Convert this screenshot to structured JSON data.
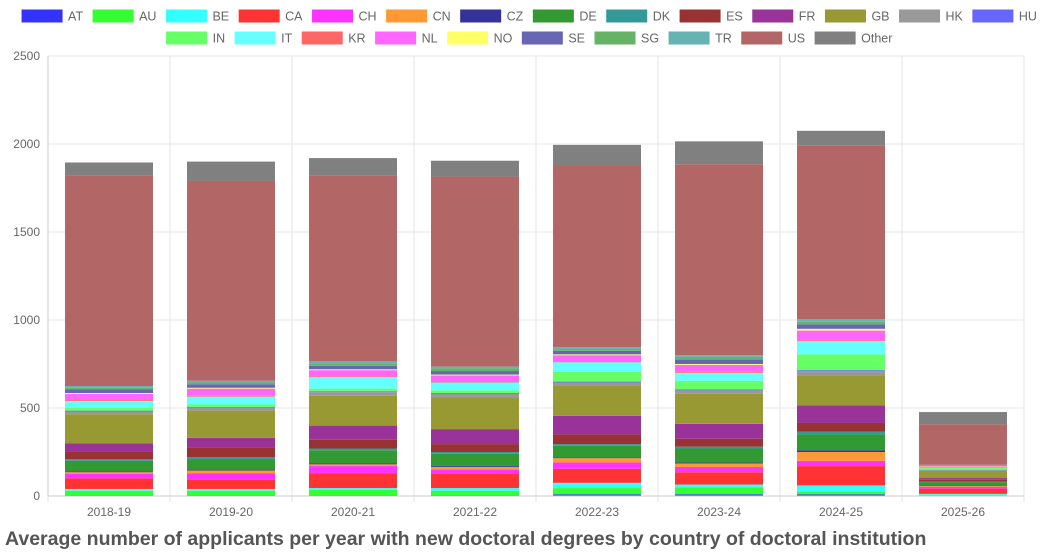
{
  "caption": "Average number of applicants per year with new doctoral degrees by country of doctoral institution",
  "chart_data": {
    "type": "bar",
    "stacked": true,
    "title": "",
    "xlabel": "",
    "ylabel": "",
    "ylim": [
      0,
      2500
    ],
    "yticks": [
      0,
      500,
      1000,
      1500,
      2000,
      2500
    ],
    "grid": true,
    "legend_position": "top",
    "categories": [
      "2018-19",
      "2019-20",
      "2020-21",
      "2021-22",
      "2022-23",
      "2023-24",
      "2024-25",
      "2025-26"
    ],
    "series": [
      {
        "name": "AT",
        "color": "#3333ff",
        "values": [
          5,
          5,
          5,
          5,
          10,
          10,
          10,
          2
        ]
      },
      {
        "name": "AU",
        "color": "#33ff33",
        "values": [
          25,
          25,
          30,
          25,
          35,
          40,
          15,
          5
        ]
      },
      {
        "name": "BE",
        "color": "#33ffff",
        "values": [
          10,
          10,
          10,
          15,
          30,
          15,
          35,
          5
        ]
      },
      {
        "name": "CA",
        "color": "#ff3333",
        "values": [
          60,
          55,
          85,
          80,
          80,
          70,
          110,
          30
        ]
      },
      {
        "name": "CH",
        "color": "#ff33ff",
        "values": [
          25,
          35,
          40,
          25,
          35,
          30,
          30,
          10
        ]
      },
      {
        "name": "CN",
        "color": "#ff9933",
        "values": [
          10,
          15,
          10,
          15,
          25,
          20,
          50,
          5
        ]
      },
      {
        "name": "CZ",
        "color": "#333399",
        "values": [
          5,
          5,
          5,
          5,
          5,
          5,
          10,
          2
        ]
      },
      {
        "name": "DE",
        "color": "#339933",
        "values": [
          60,
          60,
          75,
          70,
          65,
          80,
          90,
          20
        ]
      },
      {
        "name": "DK",
        "color": "#339999",
        "values": [
          10,
          10,
          10,
          10,
          10,
          10,
          15,
          3
        ]
      },
      {
        "name": "ES",
        "color": "#993333",
        "values": [
          45,
          55,
          50,
          45,
          55,
          45,
          50,
          10
        ]
      },
      {
        "name": "FR",
        "color": "#993399",
        "values": [
          45,
          55,
          80,
          85,
          105,
          85,
          100,
          10
        ]
      },
      {
        "name": "GB",
        "color": "#999933",
        "values": [
          165,
          155,
          170,
          180,
          170,
          170,
          170,
          40
        ]
      },
      {
        "name": "HK",
        "color": "#999999",
        "values": [
          15,
          15,
          20,
          20,
          20,
          20,
          25,
          5
        ]
      },
      {
        "name": "HU",
        "color": "#6666ff",
        "values": [
          5,
          5,
          5,
          5,
          5,
          5,
          5,
          2
        ]
      },
      {
        "name": "IN",
        "color": "#66ff66",
        "values": [
          15,
          15,
          15,
          15,
          55,
          50,
          90,
          10
        ]
      },
      {
        "name": "IT",
        "color": "#66ffff",
        "values": [
          40,
          45,
          65,
          45,
          55,
          45,
          75,
          5
        ]
      },
      {
        "name": "KR",
        "color": "#ff6666",
        "values": [
          5,
          5,
          5,
          5,
          5,
          5,
          5,
          1
        ]
      },
      {
        "name": "NL",
        "color": "#ff66ff",
        "values": [
          35,
          40,
          35,
          35,
          35,
          40,
          55,
          5
        ]
      },
      {
        "name": "NO",
        "color": "#ffff66",
        "values": [
          5,
          5,
          5,
          5,
          5,
          5,
          10,
          1
        ]
      },
      {
        "name": "SE",
        "color": "#6666b3",
        "values": [
          20,
          20,
          20,
          20,
          20,
          25,
          25,
          2
        ]
      },
      {
        "name": "SG",
        "color": "#66b366",
        "values": [
          10,
          10,
          15,
          15,
          10,
          15,
          15,
          2
        ]
      },
      {
        "name": "TR",
        "color": "#66b3b3",
        "values": [
          10,
          10,
          10,
          10,
          10,
          10,
          15,
          2
        ]
      },
      {
        "name": "US",
        "color": "#b36666",
        "values": [
          1195,
          1135,
          1055,
          1080,
          1030,
          1085,
          985,
          230
        ]
      },
      {
        "name": "Other",
        "color": "#808080",
        "values": [
          75,
          110,
          100,
          90,
          120,
          130,
          85,
          70
        ]
      }
    ]
  }
}
